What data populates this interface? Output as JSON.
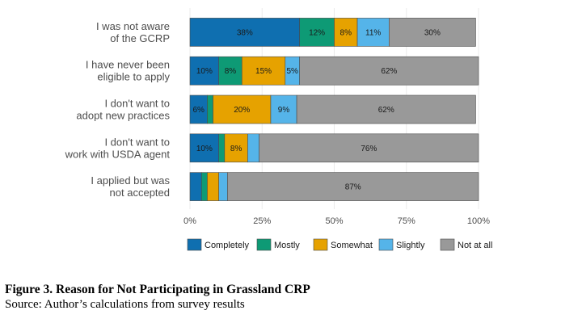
{
  "chart_data": {
    "type": "bar",
    "orientation": "horizontal",
    "stacked": true,
    "categories": [
      "I was not aware\nof the GCRP",
      "I have never been\neligible to apply",
      "I don't want to\nadopt new practices",
      "I don't want to\nwork with USDA agent",
      "I applied but was\nnot accepted"
    ],
    "series": [
      {
        "name": "Completely",
        "color": "#0f6fb0",
        "values": [
          38,
          10,
          6,
          10,
          4
        ]
      },
      {
        "name": "Mostly",
        "color": "#0e9a75",
        "values": [
          12,
          8,
          2,
          2,
          2
        ]
      },
      {
        "name": "Somewhat",
        "color": "#e6a200",
        "values": [
          8,
          15,
          20,
          8,
          4
        ]
      },
      {
        "name": "Slightly",
        "color": "#55b4e9",
        "values": [
          11,
          5,
          9,
          4,
          3
        ]
      },
      {
        "name": "Not at all",
        "color": "#999999",
        "values": [
          30,
          62,
          62,
          76,
          87
        ]
      }
    ],
    "data_labels": [
      [
        "38%",
        "12%",
        "8%",
        "11%",
        "30%"
      ],
      [
        "10%",
        "8%",
        "15%",
        "5%",
        "62%"
      ],
      [
        "6%",
        "",
        "20%",
        "9%",
        "62%"
      ],
      [
        "10%",
        "",
        "8%",
        "",
        "76%"
      ],
      [
        "",
        "",
        "",
        "",
        "87%"
      ]
    ],
    "xlim": [
      0,
      100
    ],
    "x_ticks": [
      0,
      25,
      50,
      75,
      100
    ],
    "x_tick_labels": [
      "0%",
      "25%",
      "50%",
      "75%",
      "100%"
    ],
    "grid": true,
    "legend_position": "bottom"
  },
  "caption": {
    "title": "Figure 3. Reason for Not Participating in Grassland CRP",
    "source": "Source: Author’s calculations from survey results"
  }
}
